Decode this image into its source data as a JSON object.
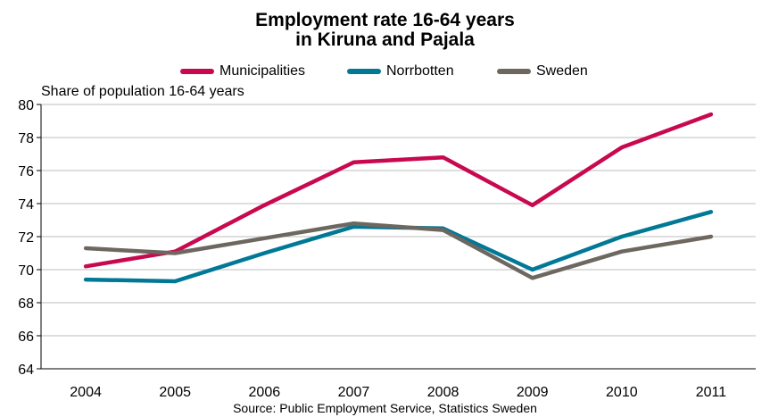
{
  "chart_data": {
    "type": "line",
    "title_line1": "Employment rate 16-64 years",
    "title_line2": "in Kiruna and Pajala",
    "ylabel": "Share of population 16-64 years",
    "source": "Source: Public Employment Service, Statistics Sweden",
    "categories": [
      "2004",
      "2005",
      "2006",
      "2007",
      "2008",
      "2009",
      "2010",
      "2011"
    ],
    "ylim": [
      64,
      80
    ],
    "yticks": [
      64,
      66,
      68,
      70,
      72,
      74,
      76,
      78,
      80
    ],
    "grid": true,
    "legend_position": "top",
    "series": [
      {
        "name": "Municipalities",
        "color": "#c8094f",
        "values": [
          70.2,
          71.1,
          73.9,
          76.5,
          76.8,
          73.9,
          77.4,
          79.4
        ]
      },
      {
        "name": "Norrbotten",
        "color": "#007896",
        "values": [
          69.4,
          69.3,
          71.0,
          72.6,
          72.5,
          70.0,
          72.0,
          73.5
        ]
      },
      {
        "name": "Sweden",
        "color": "#6d6760",
        "values": [
          71.3,
          71.0,
          71.9,
          72.8,
          72.4,
          69.5,
          71.1,
          72.0
        ]
      }
    ]
  }
}
